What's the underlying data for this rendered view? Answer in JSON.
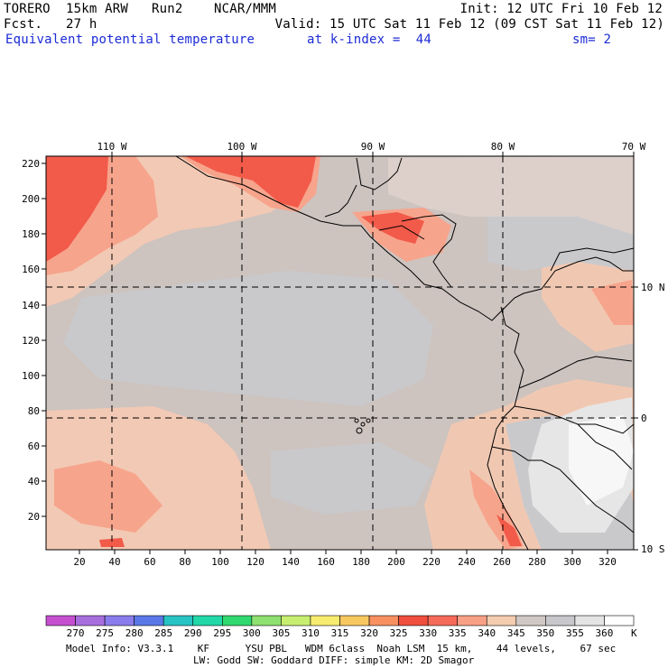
{
  "header": {
    "model": "TORERO  15km ARW   Run2    NCAR/MMM",
    "init": "Init: 12 UTC Fri 10 Feb 12",
    "fcst": "Fcst.   27 h",
    "valid": "Valid: 15 UTC Sat 11 Feb 12 (09 CST Sat 11 Feb 12)",
    "field": "Equivalent potential temperature",
    "level": "at k-index =  44",
    "smooth": "sm= 2"
  },
  "top_ticks": [
    "110 W",
    "100 W",
    "90 W",
    "80 W",
    "70 W"
  ],
  "right_ticks": [
    "10 N",
    "0",
    "10 S"
  ],
  "y_ticks": [
    "220",
    "200",
    "180",
    "160",
    "140",
    "120",
    "100",
    "80",
    "60",
    "40",
    "20"
  ],
  "x_ticks": [
    "20",
    "40",
    "60",
    "80",
    "100",
    "120",
    "140",
    "160",
    "180",
    "200",
    "220",
    "240",
    "260",
    "280",
    "300",
    "320"
  ],
  "colorbar": {
    "labels": [
      "270",
      "275",
      "280",
      "285",
      "290",
      "295",
      "300",
      "305",
      "310",
      "315",
      "320",
      "325",
      "330",
      "335",
      "340",
      "345",
      "350",
      "355",
      "360"
    ],
    "unit": "K",
    "colors": [
      "#c64fd0",
      "#a86ede",
      "#8a7cec",
      "#5a78e8",
      "#28c4c4",
      "#22d8a8",
      "#30d870",
      "#8ee070",
      "#c8ee70",
      "#f8ec70",
      "#f8c860",
      "#f89060",
      "#f04e3e",
      "#f66a5a",
      "#f8a086",
      "#f4ccb0",
      "#d0c8c4",
      "#c8c8cc",
      "#e4e4e4",
      "#ffffff"
    ]
  },
  "footer": {
    "line1": "Model Info: V3.3.1    KF      YSU PBL   WDM 6class  Noah LSM  15 km,    44 levels,    67 sec",
    "line2": "LW: Godd SW: Goddard DIFF: simple KM: 2D Smagor"
  }
}
